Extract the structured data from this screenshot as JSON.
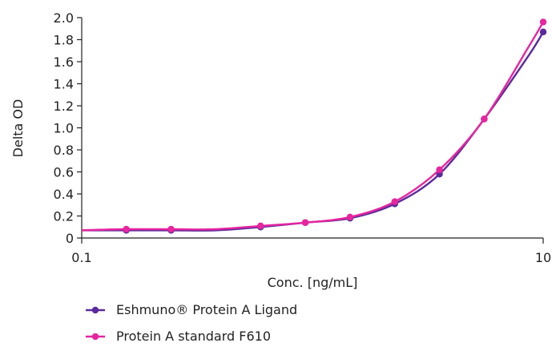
{
  "chart_data": {
    "type": "line",
    "xscale": "log",
    "xlabel": "Conc. [ng/mL]",
    "ylabel": "Delta OD",
    "xlim": [
      0.1,
      10
    ],
    "ylim": [
      0,
      2.0
    ],
    "x_ticks": [
      0.1,
      10
    ],
    "x_tick_labels": [
      "0.1",
      "10"
    ],
    "y_ticks": [
      0,
      0.2,
      0.4,
      0.6,
      0.8,
      1.0,
      1.2,
      1.4,
      1.6,
      1.8,
      2.0
    ],
    "y_tick_labels": [
      "0",
      "0.2",
      "0.4",
      "0.6",
      "0.8",
      "1.0",
      "1.2",
      "1.4",
      "1.6",
      "1.8",
      "2.0"
    ],
    "grid": false,
    "legend_position": "bottom-left",
    "series": [
      {
        "name": "Eshmuno® Protein A Ligand",
        "color": "#5b2a9c",
        "x": [
          0.1,
          0.156,
          0.244,
          0.381,
          0.596,
          0.931,
          1.455,
          2.274,
          3.553,
          5.551,
          8.674,
          10
        ],
        "y": [
          0.07,
          0.07,
          0.07,
          0.07,
          0.1,
          0.14,
          0.18,
          0.31,
          0.58,
          1.08,
          1.66,
          1.87
        ],
        "markers": [
          false,
          true,
          true,
          false,
          true,
          true,
          true,
          true,
          true,
          true,
          false,
          true
        ]
      },
      {
        "name": "Protein A standard F610",
        "color": "#e6259f",
        "x": [
          0.1,
          0.156,
          0.244,
          0.381,
          0.596,
          0.931,
          1.455,
          2.274,
          3.553,
          5.551,
          8.674,
          10
        ],
        "y": [
          0.07,
          0.08,
          0.08,
          0.08,
          0.11,
          0.14,
          0.19,
          0.33,
          0.62,
          1.08,
          1.74,
          1.96
        ],
        "markers": [
          false,
          true,
          true,
          false,
          true,
          true,
          true,
          true,
          true,
          true,
          false,
          true
        ]
      }
    ]
  }
}
